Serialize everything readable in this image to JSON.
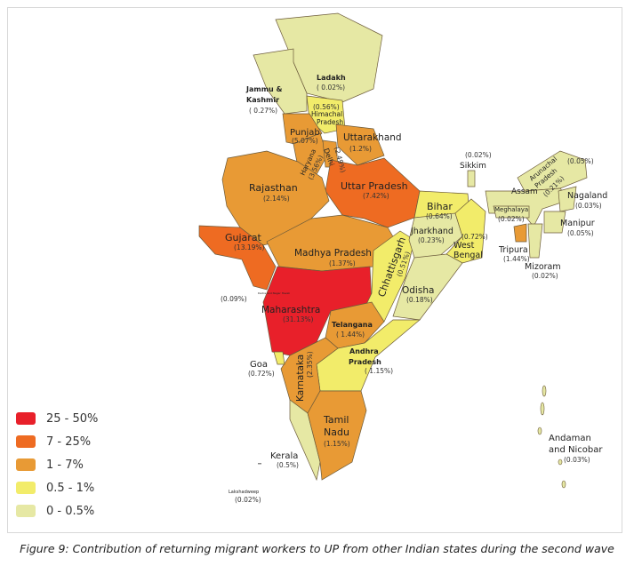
{
  "legend": [
    {
      "label": "25 - 50%",
      "color": "#e8202a"
    },
    {
      "label": "7 - 25%",
      "color": "#ee6b22"
    },
    {
      "label": "1 - 7%",
      "color": "#e89a35"
    },
    {
      "label": "0.5 - 1%",
      "color": "#f2ec6a"
    },
    {
      "label": "0 - 0.5%",
      "color": "#e6e8a4"
    }
  ],
  "states": {
    "ladakh": {
      "name": "Ladakh",
      "value": "( 0.02%)"
    },
    "jk": {
      "name1": "Jammu &",
      "name2": "Kashmir",
      "value": "( 0.27%)"
    },
    "himachal": {
      "name1": "Himachal",
      "name2": "Pradesh",
      "value": "(0.56%)"
    },
    "punjab": {
      "name": "Punjab",
      "value": "(5.07%)"
    },
    "haryana": {
      "name": "Haryana",
      "value": "(3.56%)"
    },
    "delhi": {
      "name": "Delhi",
      "value": "(2.49%)"
    },
    "uttarakhand": {
      "name": "Uttarakhand",
      "value": "(1.2%)"
    },
    "up": {
      "name": "Uttar Pradesh",
      "value": "(7.42%)"
    },
    "rajasthan": {
      "name": "Rajasthan",
      "value": "(2.14%)"
    },
    "gujarat": {
      "name": "Gujarat",
      "value": "(13.19%)"
    },
    "mp": {
      "name": "Madhya Pradesh",
      "value": "(1.37%)"
    },
    "dnh": {
      "name": "Dadra and Nagar Haveli",
      "value": "(0.09%)"
    },
    "maharashtra": {
      "name": "Maharashtra",
      "value": "(31.13%)"
    },
    "chhattisgarh": {
      "name": "Chhattisgarh",
      "value": "(0.51%)"
    },
    "bihar": {
      "name": "Bihar",
      "value": "(0.64%)"
    },
    "jharkhand": {
      "name": "Jharkhand",
      "value": "(0.23%)"
    },
    "wb": {
      "name1": "West",
      "name2": "Bengal",
      "value": "(0.72%)"
    },
    "odisha": {
      "name": "Odisha",
      "value": "(0.18%)"
    },
    "telangana": {
      "name": "Telangana",
      "value": "( 1.44%)"
    },
    "ap": {
      "name1": "Andhra",
      "name2": "Pradesh",
      "value": "( 1.15%)"
    },
    "goa": {
      "name": "Goa",
      "value": "(0.72%)"
    },
    "karnataka": {
      "name": "Karnataka",
      "value": "(2.35%)"
    },
    "tn": {
      "name1": "Tamil",
      "name2": "Nadu",
      "value": "(1.15%)"
    },
    "kerala": {
      "name": "Kerala",
      "value": "(0.5%)"
    },
    "lakshadweep": {
      "name": "Lakshadweep",
      "value": "(0.02%)"
    },
    "sikkim": {
      "name": "Sikkim",
      "value": "(0.02%)"
    },
    "arunachal": {
      "name1": "Arunachal",
      "name2": "Pradesh",
      "value": "(0.05%)"
    },
    "assam": {
      "name": "Assam",
      "value": "(0.21%)"
    },
    "meghalaya": {
      "name": "Meghalaya",
      "value": "(0.02%)"
    },
    "nagaland": {
      "name": "Nagaland",
      "value": "(0.03%)"
    },
    "manipur": {
      "name": "Manipur",
      "value": "(0.05%)"
    },
    "tripura": {
      "name": "Tripura",
      "value": "(1.44%)"
    },
    "mizoram": {
      "name": "Mizoram",
      "value": "(0.02%)"
    },
    "andaman": {
      "name1": "Andaman",
      "name2": "and Nicobar",
      "value": "(0.03%)"
    }
  },
  "caption": "Figure 9: Contribution of returning migrant workers to UP from other Indian states during the second wave"
}
